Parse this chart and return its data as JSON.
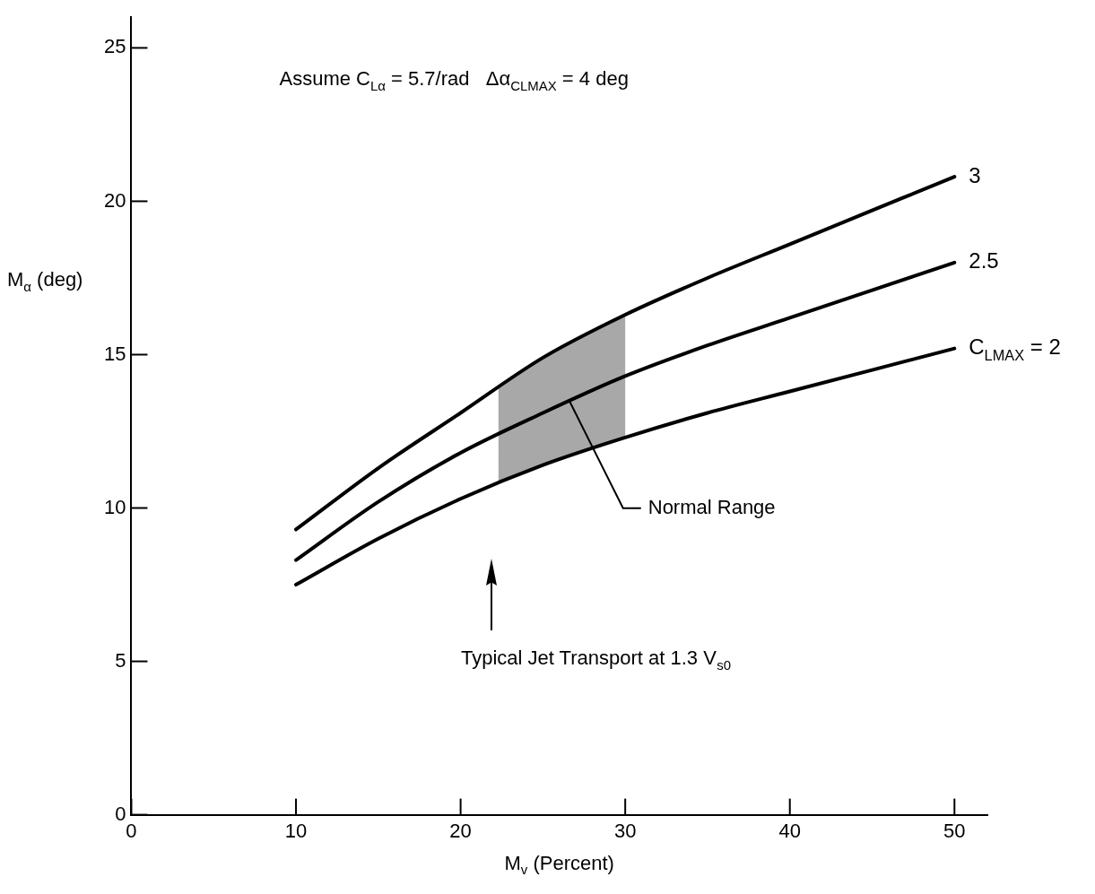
{
  "chart_data": {
    "type": "line",
    "xlabel": "M$_{v}$ (Percent)",
    "ylabel": "M$_{α}$ (deg)",
    "x": [
      10,
      15,
      20,
      25,
      30,
      35,
      40,
      45,
      50
    ],
    "series": [
      {
        "name": "3",
        "color": "#000000",
        "values": [
          9.3,
          11.3,
          13.1,
          14.9,
          16.3,
          17.5,
          18.6,
          19.7,
          20.8
        ]
      },
      {
        "name": "2.5",
        "color": "#000000",
        "values": [
          8.3,
          10.2,
          11.8,
          13.1,
          14.3,
          15.3,
          16.2,
          17.1,
          18.0
        ]
      },
      {
        "name": "C$_{LMAX}$ = 2",
        "color": "#000000",
        "values": [
          7.5,
          9.0,
          10.3,
          11.4,
          12.3,
          13.1,
          13.8,
          14.5,
          15.2
        ]
      },
      {
        "type": "area",
        "color": "#a8a8a8",
        "x": [
          22.3,
          25,
          27.5,
          30
        ],
        "values": [
          13.9,
          14.9,
          15.6,
          16.3
        ]
      }
    ],
    "xlim": [
      0,
      52
    ],
    "xticks": [
      0,
      10,
      20,
      30,
      40,
      50
    ],
    "ylim": [
      0,
      26
    ],
    "yticks": [
      0,
      5,
      10,
      15,
      20,
      25
    ],
    "annotations": [
      "Assume C$_{Lα}$ = 5.7/rad   Δα$_{CLMAX}$ = 4 deg",
      "Typical Jet Transport at 1.3 V$_{s0}$",
      {
        "text": "Normal Range",
        "x": 26.6,
        "y": 13.5
      }
    ],
    "grid": false,
    "legend": false,
    "marker": "none",
    "line_style": "solid"
  }
}
